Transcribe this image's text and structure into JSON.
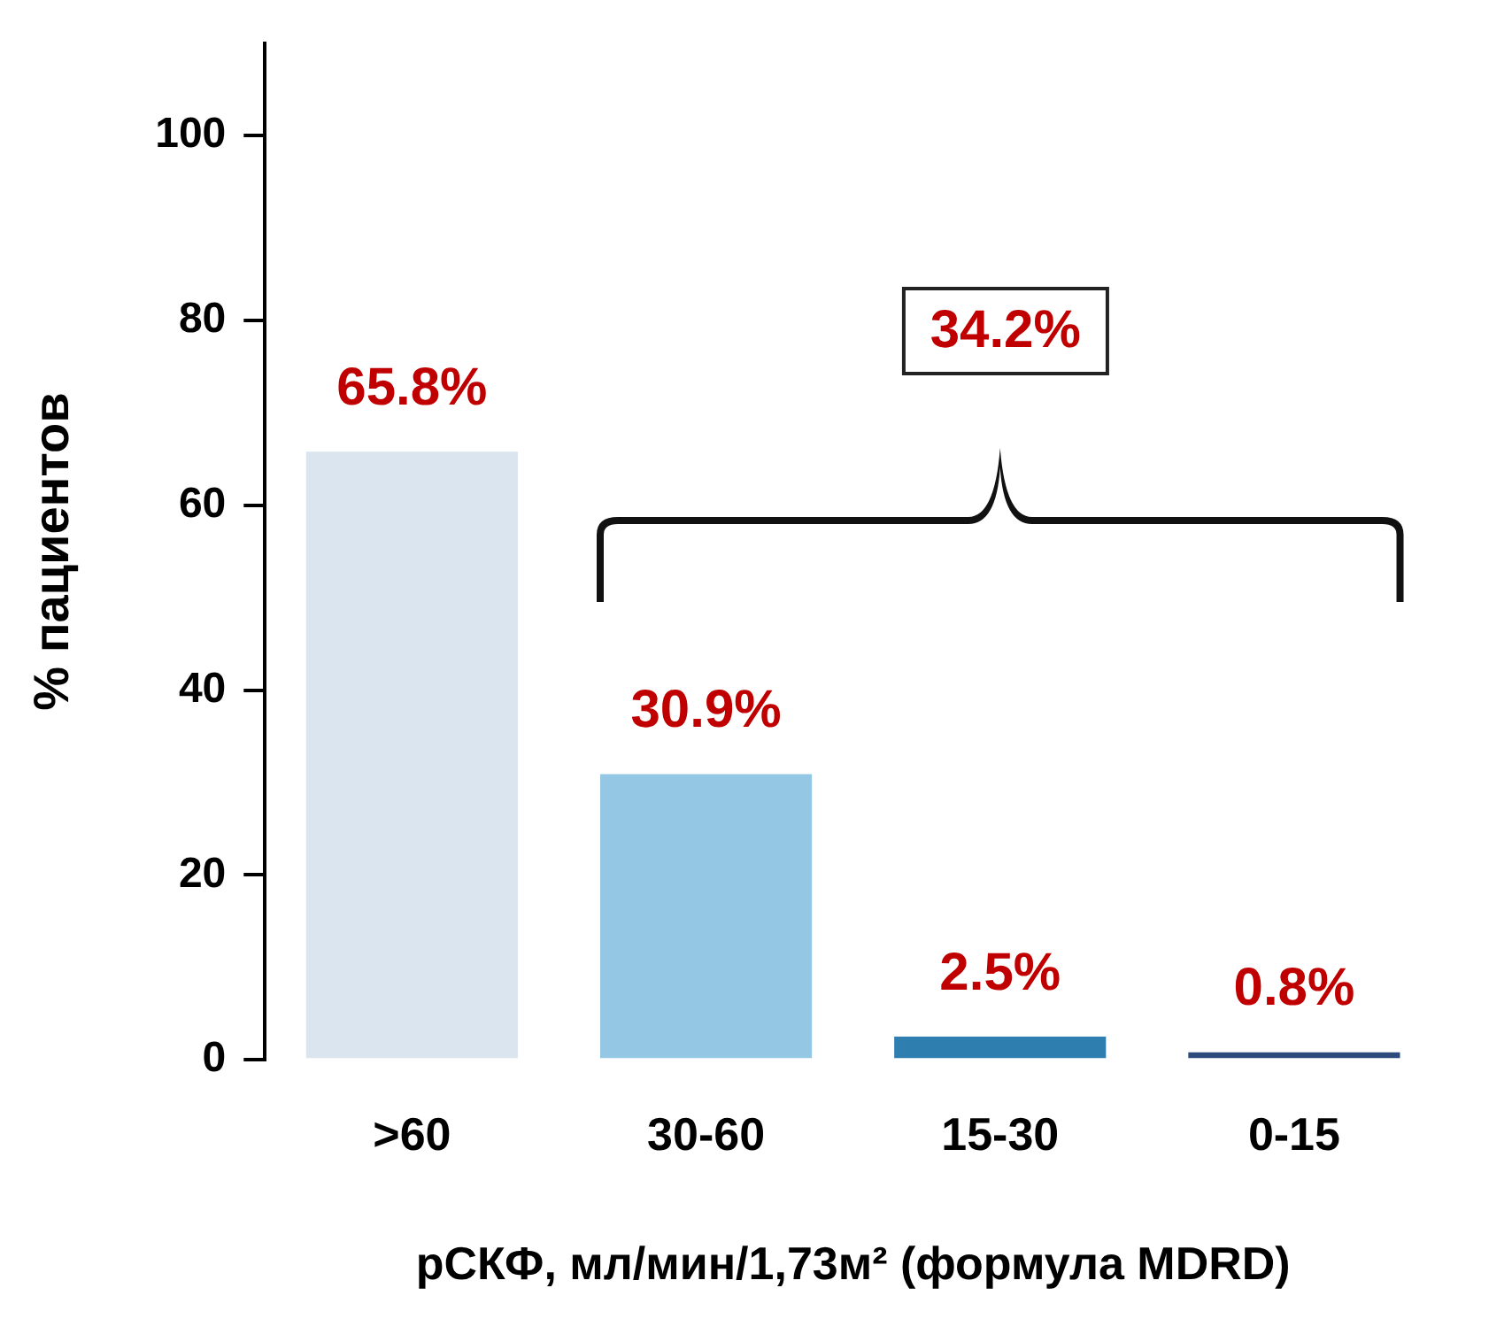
{
  "chart_data": {
    "type": "bar",
    "ylabel": "% пациентов",
    "xlabel": "рСКФ, мл/мин/1,73м² (формула MDRD)",
    "categories": [
      ">60",
      "30-60",
      "15-30",
      "0-15"
    ],
    "values": [
      65.8,
      30.9,
      2.5,
      0.8
    ],
    "colors": [
      "#dae5f0",
      "#93c7e4",
      "#2e7fb0",
      "#2e4a7d"
    ],
    "value_labels": [
      "65.8%",
      "30.9%",
      "2.5%",
      "0.8%"
    ],
    "annotations": [
      "34.2%"
    ],
    "ylim": [
      0,
      110
    ],
    "yticks": [
      0,
      20,
      40,
      60,
      80,
      100
    ],
    "grid": false,
    "legend": false
  }
}
